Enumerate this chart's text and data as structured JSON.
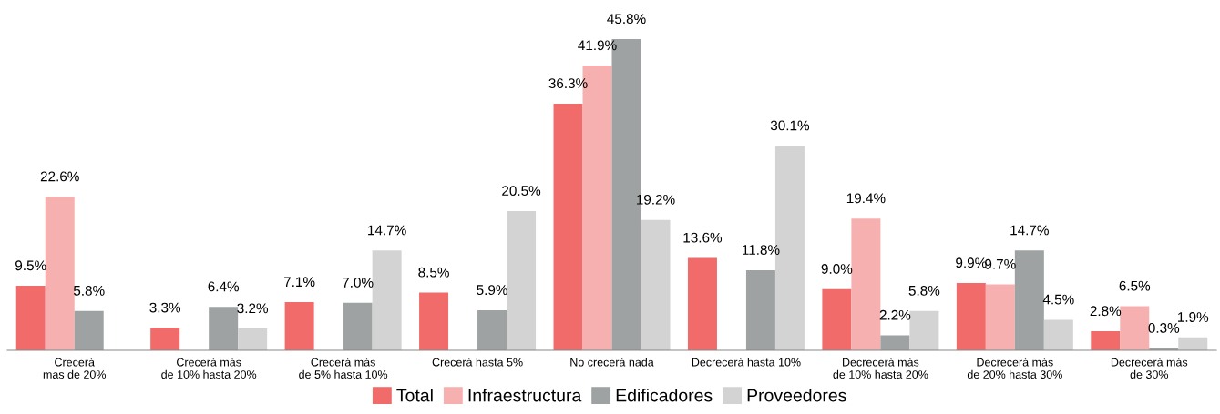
{
  "chart_data": {
    "type": "bar",
    "categories": [
      "Crecerá\nmas de 20%",
      "Crecerá más\nde 10% hasta 20%",
      "Crecerá más\nde 5% hasta 10%",
      "Crecerá hasta 5%",
      "No crecerá nada",
      "Decrecerá hasta 10%",
      "Decrecerá más\nde 10% hasta 20%",
      "Decrecerá más\nde 20% hasta 30%",
      "Decrecerá más\nde 30%"
    ],
    "series": [
      {
        "name": "Total",
        "color": "#f06b69",
        "values": [
          9.5,
          3.3,
          7.1,
          8.5,
          36.3,
          13.6,
          9.0,
          9.9,
          2.8
        ],
        "value_labels": [
          "9.5%",
          "3.3%",
          "7.1%",
          "8.5%",
          "36.3%",
          "13.6%",
          "9.0%",
          "9.9%",
          "2.8%"
        ]
      },
      {
        "name": "Infraestructura",
        "color": "#f7b0b0",
        "values": [
          22.6,
          null,
          null,
          null,
          41.9,
          null,
          19.4,
          9.7,
          6.5
        ],
        "value_labels": [
          "22.6%",
          null,
          null,
          null,
          "41.9%",
          null,
          "19.4%",
          "9.7%",
          "6.5%"
        ]
      },
      {
        "name": "Edificadores",
        "color": "#9ea2a2",
        "values": [
          5.8,
          6.4,
          7.0,
          5.9,
          45.8,
          11.8,
          2.2,
          14.7,
          0.3
        ],
        "value_labels": [
          "5.8%",
          "6.4%",
          "7.0%",
          "5.9%",
          "45.8%",
          "11.8%",
          "2.2%",
          "14.7%",
          "0.3%"
        ]
      },
      {
        "name": "Proveedores",
        "color": "#d3d3d3",
        "values": [
          null,
          3.2,
          14.7,
          20.5,
          19.2,
          30.1,
          5.8,
          4.5,
          1.9
        ],
        "value_labels": [
          null,
          "3.2%",
          "14.7%",
          "20.5%",
          "19.2%",
          "30.1%",
          "5.8%",
          "4.5%",
          "1.9%"
        ]
      }
    ],
    "legend": "bottom",
    "grid": false
  }
}
